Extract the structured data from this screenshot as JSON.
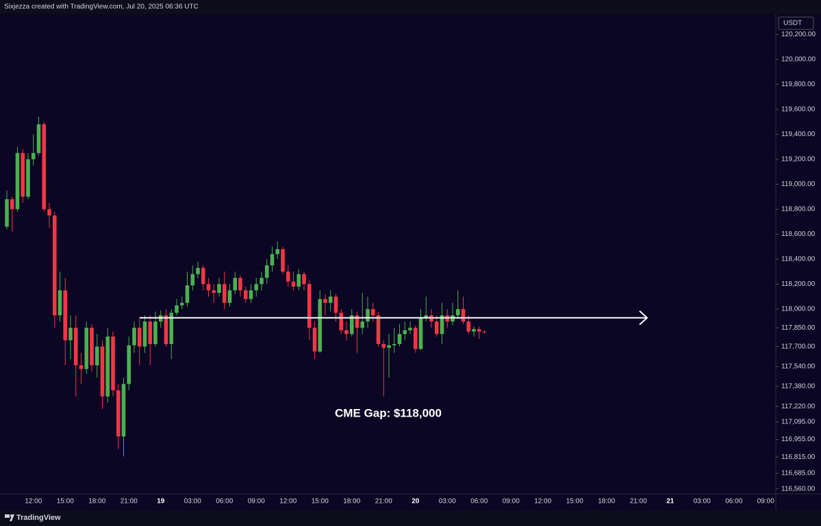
{
  "chart_data": {
    "type": "candlestick",
    "attribution": "Sixjezza created with TradingView.com, Jul 20, 2025 06:36 UTC",
    "currency": "USDT",
    "annotation": "CME Gap: $118,000",
    "brand": "TradingView",
    "arrow_level": 117930,
    "up_color": "#4caf50",
    "down_color": "#f23645",
    "ylim": [
      116520,
      120355
    ],
    "yticks": [
      {
        "value": 120200,
        "label": "120,200.00"
      },
      {
        "value": 120000,
        "label": "120,000.00"
      },
      {
        "value": 119800,
        "label": "119,800.00"
      },
      {
        "value": 119600,
        "label": "119,600.00"
      },
      {
        "value": 119400,
        "label": "119,400.00"
      },
      {
        "value": 119200,
        "label": "119,200.00"
      },
      {
        "value": 119000,
        "label": "119,000.00"
      },
      {
        "value": 118800,
        "label": "118,800.00"
      },
      {
        "value": 118600,
        "label": "118,600.00"
      },
      {
        "value": 118400,
        "label": "118,400.00"
      },
      {
        "value": 118200,
        "label": "118,200.00"
      },
      {
        "value": 118000,
        "label": "118,000.00"
      },
      {
        "value": 117850,
        "label": "117,850.00"
      },
      {
        "value": 117700,
        "label": "117,700.00"
      },
      {
        "value": 117540,
        "label": "117,540.00"
      },
      {
        "value": 117380,
        "label": "117,380.00"
      },
      {
        "value": 117220,
        "label": "117,220.00"
      },
      {
        "value": 117095,
        "label": "117,095.00"
      },
      {
        "value": 116955,
        "label": "116,955.00"
      },
      {
        "value": 116815,
        "label": "116,815.00"
      },
      {
        "value": 116685,
        "label": "116,685.00"
      },
      {
        "value": 116560,
        "label": "116,560.00"
      }
    ],
    "categories": [
      null,
      null,
      null,
      null,
      null,
      "12:00",
      null,
      null,
      null,
      null,
      null,
      "15:00",
      null,
      null,
      null,
      null,
      null,
      "18:00",
      null,
      null,
      null,
      null,
      null,
      "21:00",
      null,
      null,
      null,
      null,
      null,
      "19",
      null,
      null,
      null,
      null,
      null,
      "03:00",
      null,
      null,
      null,
      null,
      null,
      "06:00",
      null,
      null,
      null,
      null,
      null,
      "09:00",
      null,
      null,
      null,
      null,
      null,
      "12:00",
      null,
      null,
      null,
      null,
      null,
      "15:00",
      null,
      null,
      null,
      null,
      null,
      "18:00",
      null,
      null,
      null,
      null,
      null,
      "21:00",
      null,
      null,
      null,
      null,
      null,
      "20",
      null,
      null,
      null,
      null,
      null,
      "03:00",
      null,
      null,
      null,
      null,
      null,
      "06:00",
      null,
      null,
      null,
      null,
      null,
      "09:00",
      null,
      null,
      null,
      null,
      null,
      "12:00",
      null,
      null,
      null,
      null,
      null,
      "15:00",
      null,
      null,
      null,
      null,
      null,
      "18:00",
      null,
      null,
      null,
      null,
      null,
      "21:00",
      null,
      null,
      null,
      null,
      null,
      "21",
      null,
      null,
      null,
      null,
      null,
      "03:00",
      null,
      null,
      null,
      null,
      null,
      "06:00",
      null,
      null,
      null,
      null,
      null,
      "09:00",
      null,
      null
    ],
    "open": [
      118660,
      118880,
      118800,
      119250,
      118900,
      119200,
      119250,
      119480,
      118800,
      118750,
      117950,
      118150,
      117750,
      117850,
      117550,
      117520,
      117850,
      117550,
      117700,
      117300,
      117780,
      117350,
      116980,
      117400,
      117710,
      117850,
      117700,
      117900,
      117720,
      117900,
      117950,
      117720,
      117970,
      118030,
      118050,
      118190,
      118280,
      118330,
      118200,
      118150,
      118130,
      118200,
      118050,
      118150,
      118250,
      118150,
      118080,
      118150,
      118200,
      118250,
      118350,
      118440,
      118480,
      118300,
      118220,
      118180,
      118280,
      118200,
      117850,
      117660,
      118080,
      118050,
      118100,
      117970,
      117830,
      117800,
      117950,
      117850,
      117900,
      118000,
      117950,
      117720,
      117690,
      117710,
      117720,
      117800,
      117830,
      117850,
      117680,
      117930,
      117950,
      117900,
      117800,
      117950,
      117900,
      117950,
      118000,
      117900,
      117820,
      117840,
      117820,
      null,
      null,
      null,
      null,
      null,
      null,
      null,
      null,
      null,
      null,
      null,
      null,
      null,
      null,
      null,
      null,
      null,
      null,
      null,
      null,
      null,
      null,
      null,
      null,
      null,
      null,
      null,
      null,
      null,
      null,
      null,
      null,
      null,
      null,
      null,
      null,
      null,
      null,
      null,
      null,
      null,
      null,
      null,
      null,
      null,
      null,
      null,
      null,
      null,
      null,
      null,
      null,
      null,
      null,
      null
    ],
    "high": [
      118950,
      118900,
      119300,
      119280,
      119250,
      119400,
      119540,
      119500,
      118850,
      118780,
      118300,
      118250,
      117950,
      117950,
      117650,
      117900,
      117880,
      117800,
      117750,
      117850,
      117820,
      117400,
      117450,
      117780,
      117900,
      117920,
      117950,
      117950,
      117980,
      117990,
      118000,
      118000,
      118080,
      118100,
      118300,
      118350,
      118380,
      118350,
      118250,
      118200,
      118250,
      118300,
      118200,
      118300,
      118270,
      118180,
      118200,
      118250,
      118300,
      118400,
      118500,
      118540,
      118500,
      118350,
      118300,
      118320,
      118300,
      118230,
      117900,
      118150,
      118120,
      118150,
      118120,
      118000,
      117900,
      118000,
      117980,
      118130,
      118100,
      118050,
      117980,
      117750,
      117800,
      117850,
      117880,
      117900,
      117900,
      117870,
      118000,
      118100,
      118000,
      117950,
      118050,
      118000,
      118050,
      118150,
      118100,
      117950,
      117860,
      117860,
      117830,
      null,
      null,
      null,
      null,
      null,
      null,
      null,
      null,
      null,
      null,
      null,
      null,
      null,
      null,
      null,
      null,
      null,
      null,
      null,
      null,
      null,
      null,
      null,
      null,
      null,
      null,
      null,
      null,
      null,
      null,
      null,
      null,
      null,
      null,
      null,
      null,
      null,
      null,
      null,
      null,
      null,
      null,
      null,
      null,
      null,
      null,
      null,
      null,
      null,
      null,
      null,
      null,
      null,
      null,
      null
    ],
    "low": [
      118640,
      118620,
      118780,
      118850,
      118880,
      119150,
      119230,
      118780,
      118650,
      117850,
      117900,
      117550,
      117600,
      117300,
      117400,
      117480,
      117500,
      117450,
      117200,
      117250,
      117300,
      116880,
      116820,
      117350,
      117650,
      117550,
      117650,
      117550,
      117700,
      117850,
      117700,
      117600,
      117950,
      118000,
      118020,
      118150,
      118250,
      118150,
      118100,
      118050,
      118100,
      118000,
      118020,
      118120,
      118100,
      118050,
      118050,
      118100,
      118150,
      118200,
      118300,
      118400,
      118280,
      118180,
      118150,
      118150,
      118150,
      117750,
      117600,
      117650,
      117950,
      117980,
      117900,
      117800,
      117750,
      117780,
      117650,
      117800,
      117850,
      117900,
      117700,
      117300,
      117450,
      117650,
      117700,
      117750,
      117800,
      117650,
      117670,
      117900,
      117850,
      117780,
      117720,
      117850,
      117870,
      117920,
      117880,
      117800,
      117780,
      117760,
      117800,
      null,
      null,
      null,
      null,
      null,
      null,
      null,
      null,
      null,
      null,
      null,
      null,
      null,
      null,
      null,
      null,
      null,
      null,
      null,
      null,
      null,
      null,
      null,
      null,
      null,
      null,
      null,
      null,
      null,
      null,
      null,
      null,
      null,
      null,
      null,
      null,
      null,
      null,
      null,
      null,
      null,
      null,
      null,
      null,
      null,
      null,
      null,
      null,
      null,
      null,
      null,
      null,
      null,
      null,
      null
    ],
    "close": [
      118880,
      118800,
      119250,
      118900,
      119200,
      119250,
      119480,
      118800,
      118750,
      117950,
      118150,
      117750,
      117850,
      117550,
      117520,
      117850,
      117550,
      117700,
      117300,
      117780,
      117350,
      116980,
      117400,
      117710,
      117850,
      117700,
      117900,
      117720,
      117900,
      117950,
      117720,
      117970,
      118030,
      118050,
      118190,
      118280,
      118330,
      118200,
      118150,
      118130,
      118200,
      118050,
      118150,
      118250,
      118150,
      118080,
      118150,
      118200,
      118250,
      118350,
      118440,
      118480,
      118300,
      118220,
      118180,
      118280,
      118200,
      117850,
      117660,
      118080,
      118050,
      118100,
      117970,
      117830,
      117800,
      117950,
      117850,
      117900,
      118000,
      117950,
      117720,
      117690,
      117710,
      117720,
      117800,
      117830,
      117850,
      117680,
      117930,
      117950,
      117900,
      117800,
      117950,
      117900,
      117950,
      118000,
      117900,
      117820,
      117840,
      117820,
      117815,
      null,
      null,
      null,
      null,
      null,
      null,
      null,
      null,
      null,
      null,
      null,
      null,
      null,
      null,
      null,
      null,
      null,
      null,
      null,
      null,
      null,
      null,
      null,
      null,
      null,
      null,
      null,
      null,
      null,
      null,
      null,
      null,
      null,
      null,
      null,
      null,
      null,
      null,
      null,
      null,
      null,
      null,
      null,
      null,
      null,
      null,
      null,
      null,
      null,
      null,
      null,
      null,
      null,
      null,
      null
    ]
  }
}
